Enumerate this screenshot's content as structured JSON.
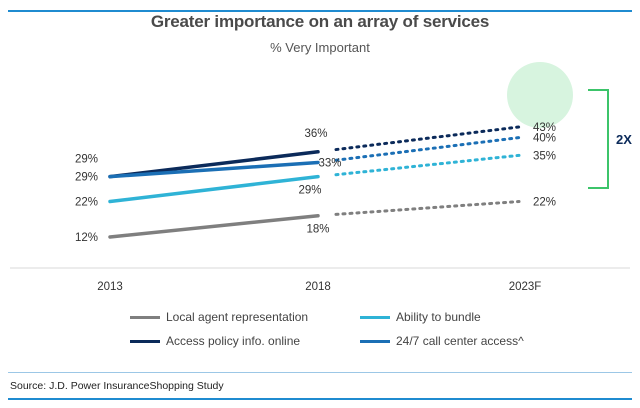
{
  "chart_data": {
    "type": "line",
    "title": "Greater importance on an array of services",
    "subtitle": "% Very Important",
    "categories": [
      "2013",
      "2018",
      "2023F"
    ],
    "series": [
      {
        "name": "Local agent representation",
        "values": [
          12,
          18,
          22
        ],
        "color": "#7f7f7f",
        "label_values": [
          "12%",
          "18%",
          "22%"
        ]
      },
      {
        "name": "Ability to bundle",
        "values": [
          22,
          29,
          35
        ],
        "color": "#2fb3d6",
        "label_values": [
          "22%",
          "29%",
          "35%"
        ]
      },
      {
        "name": "Access policy info. online",
        "values": [
          29,
          36,
          43
        ],
        "color": "#0b2a5a",
        "label_values": [
          "29%",
          "36%",
          "43%"
        ]
      },
      {
        "name": "24/7 call center access^",
        "values": [
          29,
          33,
          40
        ],
        "color": "#1b6fb5",
        "label_values": [
          "29%",
          "33%",
          "40%"
        ]
      }
    ],
    "forecast_style": "dotted from 2018 to 2023F",
    "highlight": {
      "text": "2X",
      "color": "#3cc46a",
      "circle_color": "#d7f4df"
    },
    "ylim": [
      10,
      45
    ],
    "grid": false,
    "legend_position": "bottom"
  },
  "source": "Source: J.D. Power InsuranceShopping Study"
}
